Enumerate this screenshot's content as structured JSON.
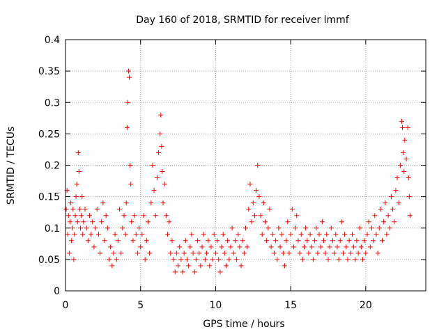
{
  "chart_data": {
    "type": "scatter",
    "title": "Day 160 of 2018, SRMTID for receiver lmmf",
    "xlabel": "GPS time / hours",
    "ylabel": "SRMTID / TECUs",
    "xlim": [
      0,
      24
    ],
    "ylim": [
      0,
      0.4
    ],
    "x_ticks": [
      0,
      5,
      10,
      15,
      20
    ],
    "x_tick_labels": [
      "0",
      "5",
      "10",
      "15",
      "20"
    ],
    "y_ticks": [
      0,
      0.05,
      0.1,
      0.15,
      0.2,
      0.25,
      0.3,
      0.35,
      0.4
    ],
    "y_tick_labels": [
      "0",
      "0.05",
      "0.1",
      "0.15",
      "0.2",
      "0.25",
      "0.3",
      "0.35",
      "0.4"
    ],
    "grid": true,
    "marker": "+",
    "color": "#ff0000",
    "series": [
      {
        "name": "SRMTID",
        "points": [
          [
            0.05,
            0.13
          ],
          [
            0.1,
            0.16
          ],
          [
            0.15,
            0.09
          ],
          [
            0.2,
            0.12
          ],
          [
            0.25,
            0.06
          ],
          [
            0.3,
            0.11
          ],
          [
            0.35,
            0.14
          ],
          [
            0.4,
            0.08
          ],
          [
            0.45,
            0.1
          ],
          [
            0.5,
            0.13
          ],
          [
            0.55,
            0.05
          ],
          [
            0.6,
            0.09
          ],
          [
            0.65,
            0.12
          ],
          [
            0.7,
            0.15
          ],
          [
            0.75,
            0.17
          ],
          [
            0.8,
            0.11
          ],
          [
            0.85,
            0.22
          ],
          [
            0.9,
            0.19
          ],
          [
            0.95,
            0.13
          ],
          [
            1.0,
            0.1
          ],
          [
            1.05,
            0.12
          ],
          [
            1.1,
            0.15
          ],
          [
            1.15,
            0.09
          ],
          [
            1.2,
            0.11
          ],
          [
            1.3,
            0.13
          ],
          [
            1.4,
            0.1
          ],
          [
            1.5,
            0.08
          ],
          [
            1.6,
            0.12
          ],
          [
            1.7,
            0.09
          ],
          [
            1.8,
            0.11
          ],
          [
            1.9,
            0.07
          ],
          [
            2.0,
            0.1
          ],
          [
            2.1,
            0.13
          ],
          [
            2.2,
            0.09
          ],
          [
            2.3,
            0.06
          ],
          [
            2.4,
            0.11
          ],
          [
            2.5,
            0.14
          ],
          [
            2.6,
            0.08
          ],
          [
            2.7,
            0.12
          ],
          [
            2.8,
            0.1
          ],
          [
            2.9,
            0.05
          ],
          [
            3.0,
            0.07
          ],
          [
            3.1,
            0.04
          ],
          [
            3.2,
            0.06
          ],
          [
            3.3,
            0.09
          ],
          [
            3.4,
            0.05
          ],
          [
            3.5,
            0.08
          ],
          [
            3.6,
            0.13
          ],
          [
            3.7,
            0.06
          ],
          [
            3.8,
            0.1
          ],
          [
            3.9,
            0.12
          ],
          [
            4.0,
            0.09
          ],
          [
            4.05,
            0.14
          ],
          [
            4.1,
            0.26
          ],
          [
            4.15,
            0.3
          ],
          [
            4.2,
            0.35
          ],
          [
            4.25,
            0.34
          ],
          [
            4.3,
            0.2
          ],
          [
            4.35,
            0.17
          ],
          [
            4.4,
            0.11
          ],
          [
            4.5,
            0.08
          ],
          [
            4.6,
            0.12
          ],
          [
            4.7,
            0.09
          ],
          [
            4.8,
            0.06
          ],
          [
            4.9,
            0.1
          ],
          [
            5.0,
            0.07
          ],
          [
            5.1,
            0.09
          ],
          [
            5.2,
            0.12
          ],
          [
            5.3,
            0.05
          ],
          [
            5.4,
            0.08
          ],
          [
            5.5,
            0.11
          ],
          [
            5.6,
            0.06
          ],
          [
            5.7,
            0.14
          ],
          [
            5.8,
            0.2
          ],
          [
            5.9,
            0.16
          ],
          [
            6.0,
            0.12
          ],
          [
            6.1,
            0.18
          ],
          [
            6.2,
            0.22
          ],
          [
            6.3,
            0.25
          ],
          [
            6.35,
            0.28
          ],
          [
            6.4,
            0.23
          ],
          [
            6.45,
            0.19
          ],
          [
            6.5,
            0.14
          ],
          [
            6.6,
            0.17
          ],
          [
            6.7,
            0.12
          ],
          [
            6.8,
            0.09
          ],
          [
            6.9,
            0.11
          ],
          [
            7.0,
            0.06
          ],
          [
            7.1,
            0.08
          ],
          [
            7.2,
            0.05
          ],
          [
            7.3,
            0.03
          ],
          [
            7.4,
            0.06
          ],
          [
            7.5,
            0.04
          ],
          [
            7.6,
            0.07
          ],
          [
            7.7,
            0.05
          ],
          [
            7.8,
            0.03
          ],
          [
            7.9,
            0.06
          ],
          [
            8.0,
            0.08
          ],
          [
            8.1,
            0.05
          ],
          [
            8.2,
            0.04
          ],
          [
            8.3,
            0.07
          ],
          [
            8.4,
            0.09
          ],
          [
            8.5,
            0.06
          ],
          [
            8.6,
            0.03
          ],
          [
            8.7,
            0.05
          ],
          [
            8.8,
            0.08
          ],
          [
            8.9,
            0.06
          ],
          [
            9.0,
            0.04
          ],
          [
            9.1,
            0.07
          ],
          [
            9.2,
            0.09
          ],
          [
            9.3,
            0.05
          ],
          [
            9.4,
            0.06
          ],
          [
            9.5,
            0.08
          ],
          [
            9.6,
            0.04
          ],
          [
            9.7,
            0.07
          ],
          [
            9.8,
            0.05
          ],
          [
            9.9,
            0.09
          ],
          [
            10.0,
            0.06
          ],
          [
            10.1,
            0.08
          ],
          [
            10.2,
            0.05
          ],
          [
            10.3,
            0.03
          ],
          [
            10.4,
            0.07
          ],
          [
            10.5,
            0.09
          ],
          [
            10.6,
            0.06
          ],
          [
            10.7,
            0.04
          ],
          [
            10.8,
            0.08
          ],
          [
            10.9,
            0.05
          ],
          [
            11.0,
            0.07
          ],
          [
            11.1,
            0.1
          ],
          [
            11.2,
            0.06
          ],
          [
            11.3,
            0.08
          ],
          [
            11.4,
            0.05
          ],
          [
            11.5,
            0.09
          ],
          [
            11.6,
            0.07
          ],
          [
            11.7,
            0.04
          ],
          [
            11.8,
            0.08
          ],
          [
            11.9,
            0.06
          ],
          [
            12.0,
            0.1
          ],
          [
            12.1,
            0.07
          ],
          [
            12.2,
            0.13
          ],
          [
            12.3,
            0.17
          ],
          [
            12.4,
            0.11
          ],
          [
            12.5,
            0.14
          ],
          [
            12.6,
            0.12
          ],
          [
            12.7,
            0.16
          ],
          [
            12.8,
            0.2
          ],
          [
            12.9,
            0.15
          ],
          [
            13.0,
            0.12
          ],
          [
            13.1,
            0.09
          ],
          [
            13.2,
            0.14
          ],
          [
            13.3,
            0.11
          ],
          [
            13.4,
            0.08
          ],
          [
            13.5,
            0.1
          ],
          [
            13.6,
            0.13
          ],
          [
            13.7,
            0.07
          ],
          [
            13.8,
            0.09
          ],
          [
            13.9,
            0.06
          ],
          [
            14.0,
            0.08
          ],
          [
            14.1,
            0.05
          ],
          [
            14.2,
            0.1
          ],
          [
            14.3,
            0.07
          ],
          [
            14.4,
            0.09
          ],
          [
            14.5,
            0.06
          ],
          [
            14.6,
            0.04
          ],
          [
            14.7,
            0.08
          ],
          [
            14.8,
            0.11
          ],
          [
            14.9,
            0.06
          ],
          [
            15.0,
            0.09
          ],
          [
            15.1,
            0.13
          ],
          [
            15.2,
            0.07
          ],
          [
            15.3,
            0.1
          ],
          [
            15.4,
            0.12
          ],
          [
            15.5,
            0.08
          ],
          [
            15.6,
            0.06
          ],
          [
            15.7,
            0.09
          ],
          [
            15.8,
            0.05
          ],
          [
            15.9,
            0.07
          ],
          [
            16.0,
            0.1
          ],
          [
            16.1,
            0.08
          ],
          [
            16.2,
            0.06
          ],
          [
            16.3,
            0.09
          ],
          [
            16.4,
            0.07
          ],
          [
            16.5,
            0.05
          ],
          [
            16.6,
            0.08
          ],
          [
            16.7,
            0.1
          ],
          [
            16.8,
            0.06
          ],
          [
            16.9,
            0.09
          ],
          [
            17.0,
            0.07
          ],
          [
            17.1,
            0.11
          ],
          [
            17.2,
            0.08
          ],
          [
            17.3,
            0.06
          ],
          [
            17.4,
            0.09
          ],
          [
            17.5,
            0.05
          ],
          [
            17.6,
            0.07
          ],
          [
            17.7,
            0.1
          ],
          [
            17.8,
            0.08
          ],
          [
            17.9,
            0.06
          ],
          [
            18.0,
            0.09
          ],
          [
            18.1,
            0.07
          ],
          [
            18.2,
            0.05
          ],
          [
            18.3,
            0.08
          ],
          [
            18.4,
            0.11
          ],
          [
            18.5,
            0.06
          ],
          [
            18.6,
            0.09
          ],
          [
            18.7,
            0.07
          ],
          [
            18.8,
            0.05
          ],
          [
            18.9,
            0.08
          ],
          [
            19.0,
            0.06
          ],
          [
            19.1,
            0.09
          ],
          [
            19.2,
            0.07
          ],
          [
            19.3,
            0.05
          ],
          [
            19.4,
            0.08
          ],
          [
            19.5,
            0.06
          ],
          [
            19.6,
            0.1
          ],
          [
            19.7,
            0.07
          ],
          [
            19.8,
            0.05
          ],
          [
            19.9,
            0.08
          ],
          [
            20.0,
            0.06
          ],
          [
            20.1,
            0.09
          ],
          [
            20.2,
            0.11
          ],
          [
            20.3,
            0.07
          ],
          [
            20.4,
            0.1
          ],
          [
            20.5,
            0.08
          ],
          [
            20.6,
            0.12
          ],
          [
            20.7,
            0.09
          ],
          [
            20.8,
            0.06
          ],
          [
            20.9,
            0.1
          ],
          [
            21.0,
            0.13
          ],
          [
            21.1,
            0.08
          ],
          [
            21.2,
            0.11
          ],
          [
            21.3,
            0.14
          ],
          [
            21.4,
            0.09
          ],
          [
            21.5,
            0.12
          ],
          [
            21.6,
            0.1
          ],
          [
            21.7,
            0.15
          ],
          [
            21.8,
            0.13
          ],
          [
            21.9,
            0.11
          ],
          [
            22.0,
            0.16
          ],
          [
            22.1,
            0.18
          ],
          [
            22.2,
            0.14
          ],
          [
            22.3,
            0.2
          ],
          [
            22.4,
            0.27
          ],
          [
            22.45,
            0.26
          ],
          [
            22.5,
            0.22
          ],
          [
            22.55,
            0.19
          ],
          [
            22.6,
            0.24
          ],
          [
            22.7,
            0.21
          ],
          [
            22.8,
            0.26
          ],
          [
            22.85,
            0.18
          ],
          [
            22.9,
            0.15
          ],
          [
            22.95,
            0.12
          ]
        ]
      }
    ]
  }
}
